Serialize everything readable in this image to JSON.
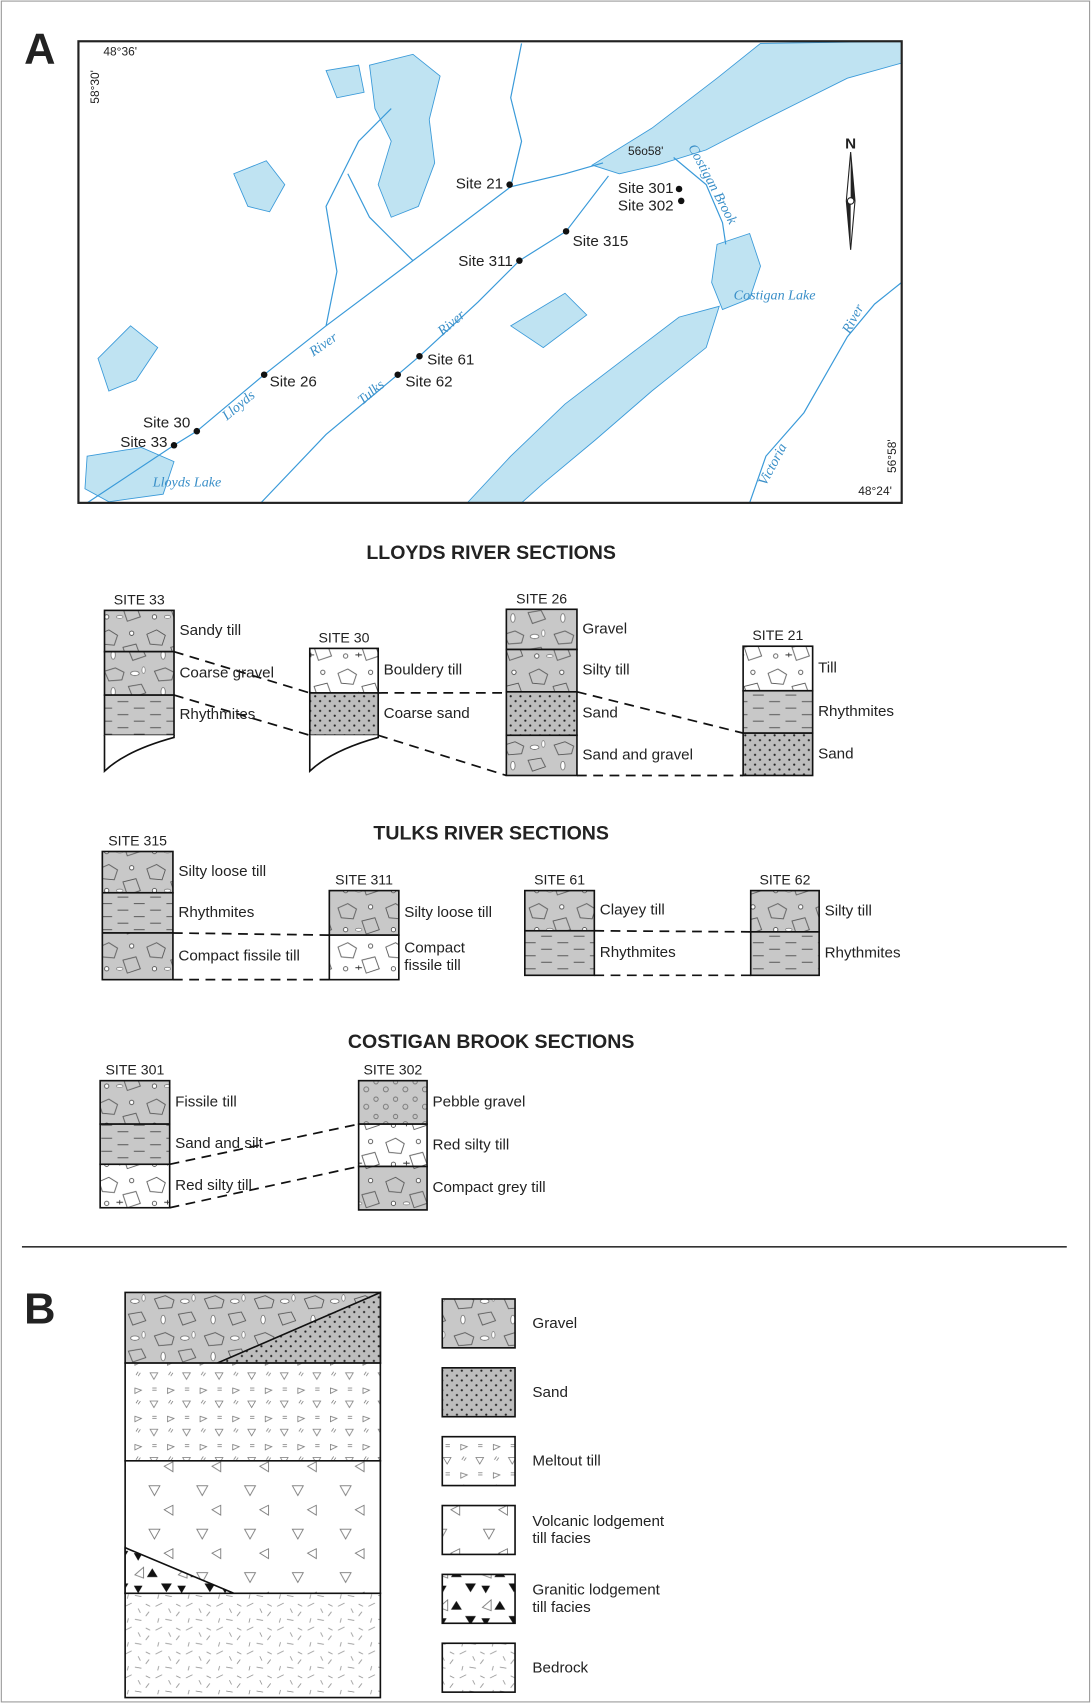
{
  "panel_a": {
    "label": "A",
    "map": {
      "coordinates": [
        "48°36'",
        "58°30'",
        "56o58'",
        "56°58'",
        "48°24'"
      ],
      "north": "N",
      "places": [
        "Costigan Brook",
        "Costigan Lake",
        "River",
        "Victoria",
        "Lloyds Lake",
        "Lloyds",
        "River",
        "Tulks",
        "River"
      ],
      "sites": [
        "Site 21",
        "Site 301",
        "Site 302",
        "Site 315",
        "Site 311",
        "Site 61",
        "Site 62",
        "Site 26",
        "Site 30",
        "Site 33"
      ]
    },
    "sections": [
      {
        "title": "LLOYDS RIVER SECTIONS",
        "columns": [
          {
            "site": "SITE 33",
            "layers": [
              "Sandy till",
              "Coarse gravel",
              "Rhythmites"
            ]
          },
          {
            "site": "SITE 30",
            "layers": [
              "Bouldery till",
              "Coarse sand"
            ]
          },
          {
            "site": "SITE 26",
            "layers": [
              "Gravel",
              "Silty till",
              "Sand",
              "Sand and gravel"
            ]
          },
          {
            "site": "SITE 21",
            "layers": [
              "Till",
              "Rhythmites",
              "Sand"
            ]
          }
        ]
      },
      {
        "title": "TULKS RIVER SECTIONS",
        "columns": [
          {
            "site": "SITE 315",
            "layers": [
              "Silty loose till",
              "Rhythmites",
              "Compact fissile till"
            ]
          },
          {
            "site": "SITE 311",
            "layers": [
              "Silty loose till",
              [
                "Compact",
                "fissile till"
              ]
            ]
          },
          {
            "site": "SITE 61",
            "layers": [
              "Clayey till",
              "Rhythmites"
            ]
          },
          {
            "site": "SITE 62",
            "layers": [
              "Silty till",
              "Rhythmites"
            ]
          }
        ]
      },
      {
        "title": "COSTIGAN BROOK SECTIONS",
        "columns": [
          {
            "site": "SITE 301",
            "layers": [
              "Fissile till",
              "Sand and silt",
              "Red silty till"
            ]
          },
          {
            "site": "SITE 302",
            "layers": [
              "Pebble gravel",
              "Red silty till",
              "Compact grey till"
            ]
          }
        ]
      }
    ]
  },
  "panel_b": {
    "label": "B",
    "legend": [
      "Gravel",
      "Sand",
      "Meltout till",
      [
        "Volcanic lodgement",
        "till facies"
      ],
      [
        "Granitic lodgement",
        "till facies"
      ],
      "Bedrock"
    ]
  }
}
